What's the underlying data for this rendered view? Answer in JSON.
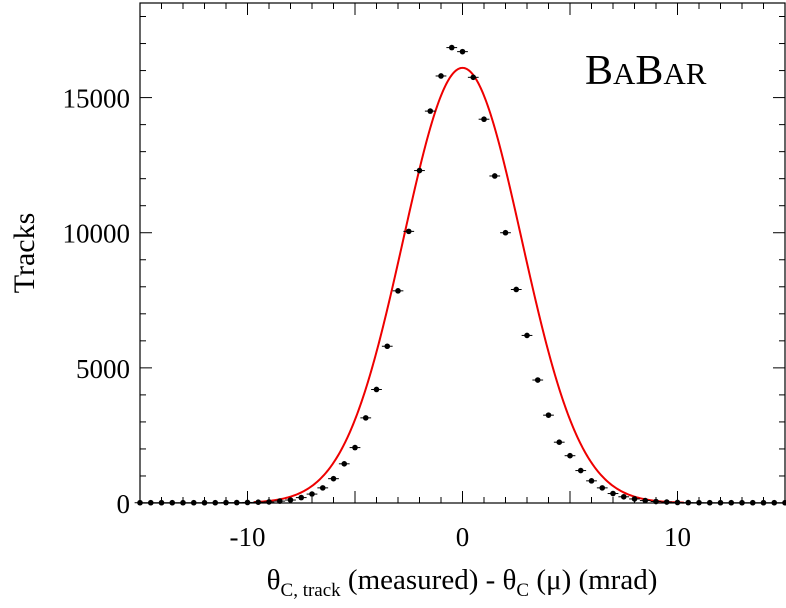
{
  "chart_data": {
    "type": "scatter",
    "title": "",
    "watermark": {
      "part1_big": "B",
      "part1_small": "A",
      "part2_big": "B",
      "part2_small": "AR"
    },
    "ylabel": "Tracks",
    "xlabel": {
      "theta1": "θ",
      "sub1": "C, track",
      "mid": " (measured) - ",
      "theta2": "θ",
      "sub2": "C",
      "end": " (μ)   (mrad)"
    },
    "xlim": [
      -15,
      15
    ],
    "ylim": [
      0,
      18500
    ],
    "x_tick_labels": [
      "-10",
      "0",
      "10"
    ],
    "x_ticks": [
      -10,
      0,
      10
    ],
    "y_tick_labels": [
      "0",
      "5000",
      "10000",
      "15000"
    ],
    "y_ticks": [
      0,
      5000,
      10000,
      15000
    ],
    "grid": false,
    "series": [
      {
        "kind": "points",
        "color": "#000000",
        "x": [
          -15,
          -14.5,
          -14,
          -13.5,
          -13,
          -12.5,
          -12,
          -11.5,
          -11,
          -10.5,
          -10,
          -9.5,
          -9,
          -8.5,
          -8,
          -7.5,
          -7,
          -6.5,
          -6,
          -5.5,
          -5,
          -4.5,
          -4,
          -3.5,
          -3,
          -2.5,
          -2,
          -1.5,
          -1,
          -0.5,
          0,
          0.5,
          1,
          1.5,
          2,
          2.5,
          3,
          3.5,
          4,
          4.5,
          5,
          5.5,
          6,
          6.5,
          7,
          7.5,
          8,
          8.5,
          9,
          9.5,
          10,
          10.5,
          11,
          11.5,
          12,
          12.5,
          13,
          13.5,
          14,
          14.5,
          15
        ],
        "y": [
          10,
          10,
          10,
          10,
          10,
          10,
          10,
          10,
          15,
          15,
          20,
          30,
          40,
          70,
          110,
          200,
          330,
          560,
          900,
          1450,
          2050,
          3150,
          4200,
          5800,
          7850,
          10050,
          12300,
          14500,
          15800,
          16850,
          16700,
          15750,
          14200,
          12100,
          10000,
          7900,
          6200,
          4550,
          3250,
          2250,
          1750,
          1200,
          820,
          560,
          350,
          230,
          150,
          90,
          55,
          35,
          20,
          15,
          12,
          10,
          10,
          10,
          10,
          10,
          10,
          10,
          10
        ]
      },
      {
        "kind": "gaussian-fit",
        "color": "#ee0000",
        "amplitude": 16100,
        "mean": 0,
        "sigma": 2.75,
        "x_range": [
          -9.7,
          10.3
        ]
      }
    ]
  }
}
